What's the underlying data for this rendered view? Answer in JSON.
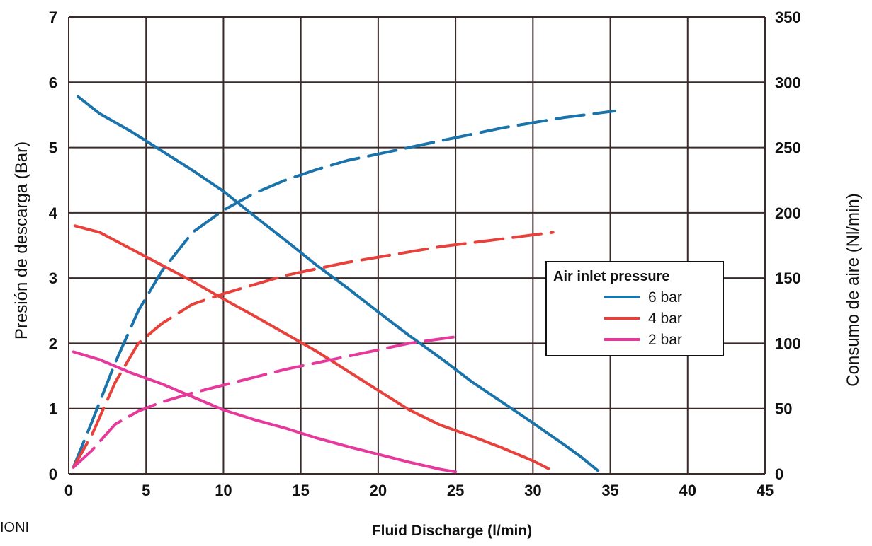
{
  "chart_data": {
    "type": "line",
    "xlabel": "Fluid Discharge (l/min)",
    "ylabel_left": "Presión de descarga (Bar)",
    "ylabel_right": "Consumo de aire (Nl/min)",
    "xlim": [
      0,
      45
    ],
    "ylim_left": [
      0,
      7
    ],
    "ylim_right": [
      0,
      350
    ],
    "x_ticks": [
      0,
      5,
      10,
      15,
      20,
      25,
      30,
      35,
      40,
      45
    ],
    "y_left_ticks": [
      0,
      1,
      2,
      3,
      4,
      5,
      6,
      7
    ],
    "y_right_ticks": [
      0,
      50,
      100,
      150,
      200,
      250,
      300,
      350
    ],
    "grid": true,
    "legend_title": "Air inlet pressure",
    "legend_position": "right",
    "series": [
      {
        "name": "6 bar",
        "color": "#1a73aa",
        "style": "solid",
        "axis": "left",
        "x": [
          0.6,
          2,
          4,
          6,
          8,
          10,
          12,
          14,
          16,
          18,
          20,
          22,
          24,
          26,
          28,
          30,
          32,
          33,
          34.2
        ],
        "y": [
          5.78,
          5.52,
          5.25,
          4.95,
          4.65,
          4.33,
          3.95,
          3.58,
          3.2,
          2.85,
          2.48,
          2.12,
          1.78,
          1.42,
          1.1,
          0.78,
          0.45,
          0.28,
          0.05
        ]
      },
      {
        "name": "6 bar",
        "color": "#1a73aa",
        "style": "dashed",
        "axis": "right",
        "x": [
          0.3,
          1.5,
          3,
          4.5,
          6,
          8,
          10,
          12,
          14,
          16,
          18,
          20,
          22,
          24,
          26,
          28,
          30,
          32,
          35.3
        ],
        "y": [
          5,
          40,
          85,
          125,
          155,
          185,
          202,
          215,
          225,
          233,
          240,
          245,
          250,
          255,
          260,
          265,
          269,
          273,
          278
        ]
      },
      {
        "name": "4 bar",
        "color": "#e8413c",
        "style": "solid",
        "axis": "left",
        "x": [
          0.4,
          2,
          4,
          6,
          8,
          10,
          12,
          14,
          16,
          18,
          20,
          22,
          24,
          26,
          28,
          30,
          31
        ],
        "y": [
          3.8,
          3.7,
          3.45,
          3.2,
          2.95,
          2.68,
          2.42,
          2.15,
          1.88,
          1.58,
          1.28,
          0.98,
          0.75,
          0.58,
          0.4,
          0.2,
          0.08
        ]
      },
      {
        "name": "4 bar",
        "color": "#e8413c",
        "style": "dashed",
        "axis": "right",
        "x": [
          0.3,
          1.5,
          3,
          4.5,
          6,
          8,
          10,
          12,
          14,
          16,
          18,
          20,
          22,
          24,
          26,
          28,
          31.3
        ],
        "y": [
          5,
          30,
          70,
          100,
          115,
          130,
          138,
          145,
          152,
          157,
          162,
          166,
          170,
          174,
          177,
          180,
          185
        ]
      },
      {
        "name": "2 bar",
        "color": "#e6399b",
        "style": "solid",
        "axis": "left",
        "x": [
          0.3,
          2,
          4,
          6,
          8,
          10,
          12,
          14,
          16,
          18,
          20,
          22,
          24,
          25
        ],
        "y": [
          1.87,
          1.75,
          1.55,
          1.38,
          1.18,
          0.98,
          0.83,
          0.7,
          0.55,
          0.42,
          0.3,
          0.18,
          0.07,
          0.03
        ]
      },
      {
        "name": "2 bar",
        "color": "#e6399b",
        "style": "dashed",
        "axis": "right",
        "x": [
          0.3,
          1.5,
          3,
          4.5,
          6,
          8,
          10,
          12,
          14,
          16,
          18,
          20,
          22,
          25
        ],
        "y": [
          5,
          18,
          38,
          48,
          55,
          62,
          68,
          74,
          80,
          85,
          90,
          95,
          100,
          105
        ]
      }
    ],
    "legend": [
      {
        "label": "6 bar",
        "color": "#1a73aa"
      },
      {
        "label": "4 bar",
        "color": "#e8413c"
      },
      {
        "label": "2 bar",
        "color": "#e6399b"
      }
    ]
  },
  "stray_text": "IONI"
}
